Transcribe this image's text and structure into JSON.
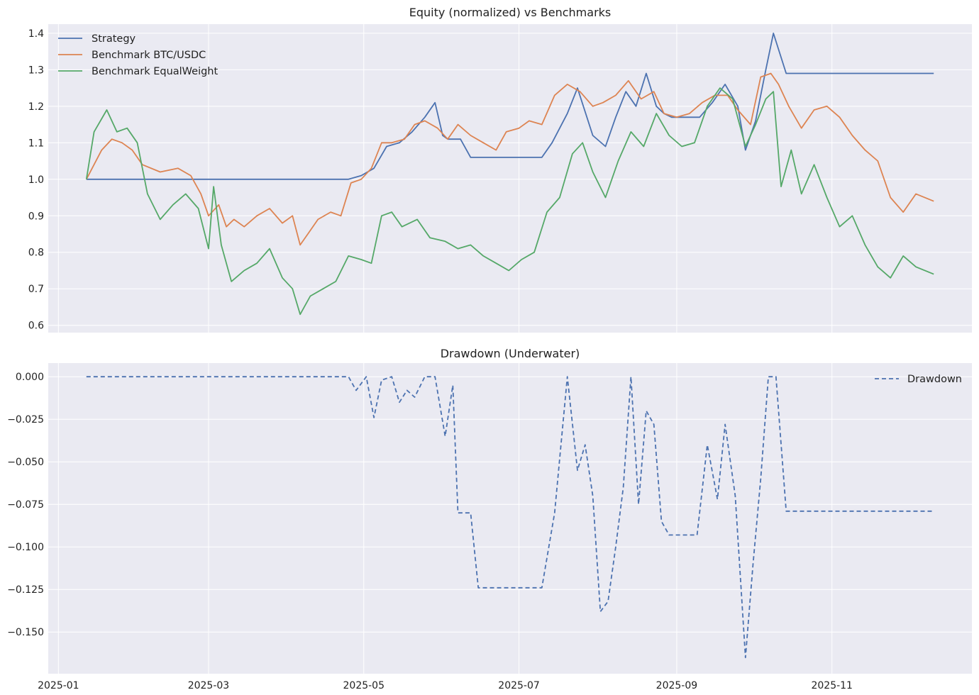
{
  "colors": {
    "background": "#eaeaf2",
    "grid": "#ffffff",
    "strategy": "#4c72b0",
    "btc": "#dd8452",
    "equal": "#55a868",
    "drawdown": "#4c72b0"
  },
  "chart_data": [
    {
      "type": "line",
      "title": "Equity (normalized) vs Benchmarks",
      "xlabel": "",
      "ylabel": "",
      "xlim": [
        "2024-12-28",
        "2025-12-26"
      ],
      "ylim": [
        0.58,
        1.425
      ],
      "yticks": [
        0.6,
        0.7,
        0.8,
        0.9,
        1.0,
        1.1,
        1.2,
        1.3,
        1.4
      ],
      "ytick_labels": [
        "0.6",
        "0.7",
        "0.8",
        "0.9",
        "1.0",
        "1.1",
        "1.2",
        "1.3",
        "1.4"
      ],
      "grid": true,
      "legend": "top-left",
      "series": [
        {
          "name": "Strategy",
          "color": "strategy",
          "x": [
            "2025-01-12",
            "2025-04-25",
            "2025-04-30",
            "2025-05-05",
            "2025-05-10",
            "2025-05-15",
            "2025-05-20",
            "2025-05-25",
            "2025-05-29",
            "2025-06-01",
            "2025-06-03",
            "2025-06-08",
            "2025-06-12",
            "2025-06-20",
            "2025-06-30",
            "2025-07-10",
            "2025-07-14",
            "2025-07-20",
            "2025-07-24",
            "2025-07-30",
            "2025-08-04",
            "2025-08-08",
            "2025-08-12",
            "2025-08-16",
            "2025-08-20",
            "2025-08-24",
            "2025-08-27",
            "2025-08-30",
            "2025-09-05",
            "2025-09-10",
            "2025-09-15",
            "2025-09-20",
            "2025-09-25",
            "2025-09-28",
            "2025-10-02",
            "2025-10-06",
            "2025-10-09",
            "2025-10-14",
            "2025-11-01",
            "2025-12-11"
          ],
          "values": [
            1.0,
            1.0,
            1.01,
            1.03,
            1.09,
            1.1,
            1.13,
            1.17,
            1.21,
            1.12,
            1.11,
            1.11,
            1.06,
            1.06,
            1.06,
            1.06,
            1.1,
            1.18,
            1.25,
            1.12,
            1.09,
            1.17,
            1.24,
            1.2,
            1.29,
            1.2,
            1.18,
            1.17,
            1.17,
            1.17,
            1.21,
            1.26,
            1.2,
            1.08,
            1.16,
            1.3,
            1.4,
            1.29,
            1.29,
            1.29
          ]
        },
        {
          "name": "Benchmark BTC/USDC",
          "color": "btc",
          "x": [
            "2025-01-12",
            "2025-01-18",
            "2025-01-22",
            "2025-01-26",
            "2025-01-30",
            "2025-02-03",
            "2025-02-10",
            "2025-02-17",
            "2025-02-22",
            "2025-02-26",
            "2025-03-01",
            "2025-03-05",
            "2025-03-08",
            "2025-03-11",
            "2025-03-15",
            "2025-03-20",
            "2025-03-25",
            "2025-03-30",
            "2025-04-03",
            "2025-04-06",
            "2025-04-09",
            "2025-04-13",
            "2025-04-18",
            "2025-04-22",
            "2025-04-26",
            "2025-04-30",
            "2025-05-04",
            "2025-05-08",
            "2025-05-12",
            "2025-05-17",
            "2025-05-21",
            "2025-05-25",
            "2025-05-30",
            "2025-06-03",
            "2025-06-07",
            "2025-06-12",
            "2025-06-17",
            "2025-06-22",
            "2025-06-26",
            "2025-07-01",
            "2025-07-05",
            "2025-07-10",
            "2025-07-15",
            "2025-07-20",
            "2025-07-25",
            "2025-07-30",
            "2025-08-03",
            "2025-08-08",
            "2025-08-13",
            "2025-08-18",
            "2025-08-23",
            "2025-08-27",
            "2025-09-01",
            "2025-09-06",
            "2025-09-11",
            "2025-09-16",
            "2025-09-21",
            "2025-09-25",
            "2025-09-30",
            "2025-10-04",
            "2025-10-08",
            "2025-10-11",
            "2025-10-15",
            "2025-10-20",
            "2025-10-25",
            "2025-10-30",
            "2025-11-04",
            "2025-11-09",
            "2025-11-14",
            "2025-11-19",
            "2025-11-24",
            "2025-11-29",
            "2025-12-04",
            "2025-12-11"
          ],
          "values": [
            1.0,
            1.08,
            1.11,
            1.1,
            1.08,
            1.04,
            1.02,
            1.03,
            1.01,
            0.96,
            0.9,
            0.93,
            0.87,
            0.89,
            0.87,
            0.9,
            0.92,
            0.88,
            0.9,
            0.82,
            0.85,
            0.89,
            0.91,
            0.9,
            0.99,
            1.0,
            1.03,
            1.1,
            1.1,
            1.11,
            1.15,
            1.16,
            1.14,
            1.11,
            1.15,
            1.12,
            1.1,
            1.08,
            1.13,
            1.14,
            1.16,
            1.15,
            1.23,
            1.26,
            1.24,
            1.2,
            1.21,
            1.23,
            1.27,
            1.22,
            1.24,
            1.18,
            1.17,
            1.18,
            1.21,
            1.23,
            1.23,
            1.19,
            1.15,
            1.28,
            1.29,
            1.26,
            1.2,
            1.14,
            1.19,
            1.2,
            1.17,
            1.12,
            1.08,
            1.05,
            0.95,
            0.91,
            0.96,
            0.94
          ]
        },
        {
          "name": "Benchmark EqualWeight",
          "color": "equal",
          "x": [
            "2025-01-12",
            "2025-01-15",
            "2025-01-20",
            "2025-01-24",
            "2025-01-28",
            "2025-02-01",
            "2025-02-05",
            "2025-02-10",
            "2025-02-15",
            "2025-02-20",
            "2025-02-25",
            "2025-03-01",
            "2025-03-03",
            "2025-03-06",
            "2025-03-10",
            "2025-03-15",
            "2025-03-20",
            "2025-03-25",
            "2025-03-30",
            "2025-04-03",
            "2025-04-06",
            "2025-04-10",
            "2025-04-15",
            "2025-04-20",
            "2025-04-25",
            "2025-04-30",
            "2025-05-04",
            "2025-05-08",
            "2025-05-12",
            "2025-05-16",
            "2025-05-22",
            "2025-05-27",
            "2025-06-02",
            "2025-06-07",
            "2025-06-12",
            "2025-06-17",
            "2025-06-22",
            "2025-06-27",
            "2025-07-02",
            "2025-07-07",
            "2025-07-12",
            "2025-07-17",
            "2025-07-22",
            "2025-07-26",
            "2025-07-30",
            "2025-08-04",
            "2025-08-09",
            "2025-08-14",
            "2025-08-19",
            "2025-08-24",
            "2025-08-29",
            "2025-09-03",
            "2025-09-08",
            "2025-09-13",
            "2025-09-18",
            "2025-09-23",
            "2025-09-28",
            "2025-10-02",
            "2025-10-06",
            "2025-10-09",
            "2025-10-12",
            "2025-10-16",
            "2025-10-20",
            "2025-10-25",
            "2025-10-30",
            "2025-11-04",
            "2025-11-09",
            "2025-11-14",
            "2025-11-19",
            "2025-11-24",
            "2025-11-29",
            "2025-12-04",
            "2025-12-11"
          ],
          "values": [
            1.0,
            1.13,
            1.19,
            1.13,
            1.14,
            1.1,
            0.96,
            0.89,
            0.93,
            0.96,
            0.92,
            0.81,
            0.98,
            0.82,
            0.72,
            0.75,
            0.77,
            0.81,
            0.73,
            0.7,
            0.63,
            0.68,
            0.7,
            0.72,
            0.79,
            0.78,
            0.77,
            0.9,
            0.91,
            0.87,
            0.89,
            0.84,
            0.83,
            0.81,
            0.82,
            0.79,
            0.77,
            0.75,
            0.78,
            0.8,
            0.91,
            0.95,
            1.07,
            1.1,
            1.02,
            0.95,
            1.05,
            1.13,
            1.09,
            1.18,
            1.12,
            1.09,
            1.1,
            1.2,
            1.25,
            1.22,
            1.09,
            1.15,
            1.22,
            1.24,
            0.98,
            1.08,
            0.96,
            1.04,
            0.95,
            0.87,
            0.9,
            0.82,
            0.76,
            0.73,
            0.79,
            0.76,
            0.74
          ]
        }
      ]
    },
    {
      "type": "line",
      "title": "Drawdown (Underwater)",
      "xlabel": "",
      "ylabel": "",
      "xlim": [
        "2024-12-28",
        "2025-12-26"
      ],
      "ylim": [
        -0.1745,
        0.008
      ],
      "yticks": [
        0.0,
        -0.025,
        -0.05,
        -0.075,
        -0.1,
        -0.125,
        -0.15
      ],
      "ytick_labels": [
        "0.000",
        "−0.025",
        "−0.050",
        "−0.075",
        "−0.100",
        "−0.125",
        "−0.150"
      ],
      "xticks": [
        "2025-01-01",
        "2025-03-01",
        "2025-05-01",
        "2025-07-01",
        "2025-09-01",
        "2025-11-01"
      ],
      "xtick_labels": [
        "2025-01",
        "2025-03",
        "2025-05",
        "2025-07",
        "2025-09",
        "2025-11"
      ],
      "grid": true,
      "legend": "top-right",
      "series": [
        {
          "name": "Drawdown",
          "color": "drawdown",
          "style": "dashed",
          "x": [
            "2025-01-12",
            "2025-04-25",
            "2025-04-28",
            "2025-05-02",
            "2025-05-05",
            "2025-05-08",
            "2025-05-12",
            "2025-05-15",
            "2025-05-18",
            "2025-05-21",
            "2025-05-25",
            "2025-05-29",
            "2025-06-02",
            "2025-06-05",
            "2025-06-07",
            "2025-06-12",
            "2025-06-15",
            "2025-06-30",
            "2025-07-10",
            "2025-07-15",
            "2025-07-20",
            "2025-07-24",
            "2025-07-27",
            "2025-07-30",
            "2025-08-02",
            "2025-08-05",
            "2025-08-08",
            "2025-08-11",
            "2025-08-14",
            "2025-08-17",
            "2025-08-20",
            "2025-08-23",
            "2025-08-26",
            "2025-08-29",
            "2025-09-01",
            "2025-09-05",
            "2025-09-09",
            "2025-09-13",
            "2025-09-17",
            "2025-09-20",
            "2025-09-24",
            "2025-09-28",
            "2025-10-01",
            "2025-10-04",
            "2025-10-07",
            "2025-10-10",
            "2025-10-14",
            "2025-11-01",
            "2025-12-11"
          ],
          "values": [
            0.0,
            0.0,
            -0.008,
            0.0,
            -0.024,
            -0.002,
            0.0,
            -0.015,
            -0.008,
            -0.012,
            0.0,
            0.0,
            -0.035,
            -0.005,
            -0.08,
            -0.08,
            -0.124,
            -0.124,
            -0.124,
            -0.08,
            0.0,
            -0.055,
            -0.04,
            -0.07,
            -0.138,
            -0.132,
            -0.1,
            -0.065,
            0.0,
            -0.075,
            -0.02,
            -0.028,
            -0.085,
            -0.093,
            -0.093,
            -0.093,
            -0.093,
            -0.04,
            -0.072,
            -0.028,
            -0.07,
            -0.165,
            -0.11,
            -0.06,
            0.0,
            0.0,
            -0.079,
            -0.079,
            -0.079
          ]
        }
      ]
    }
  ]
}
